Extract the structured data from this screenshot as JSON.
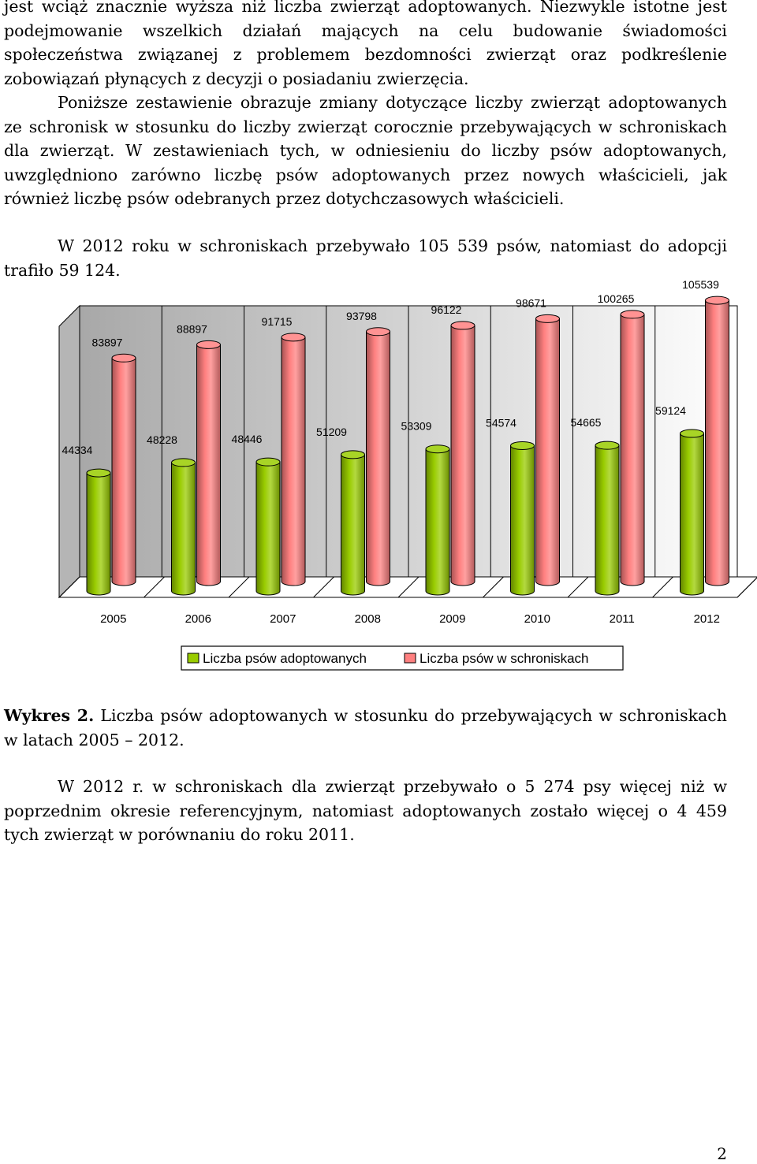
{
  "paragraphs": {
    "p1": "jest wciąż znacznie wyższa niż liczba zwierząt adoptowanych. Niezwykle istotne jest podejmowanie wszelkich działań mających na celu budowanie świadomości społeczeństwa związanej z problemem bezdomności zwierząt oraz podkreślenie zobowiązań płynących z decyzji o posiadaniu zwierzęcia.",
    "p2": "Poniższe zestawienie obrazuje zmiany dotyczące liczby zwierząt adoptowanych ze schronisk w stosunku do liczby zwierząt corocznie przebywających w schroniskach dla zwierząt. W zestawieniach tych, w odniesieniu do liczby psów adoptowanych, uwzględniono zarówno liczbę psów adoptowanych przez nowych właścicieli, jak również liczbę psów odebranych przez dotychczasowych właścicieli.",
    "p3": "W 2012 roku w schroniskach przebywało 105 539 psów, natomiast do adopcji trafiło 59 124.",
    "p4": "W 2012 r. w schroniskach dla zwierząt przebywało o 5 274 psy więcej niż w poprzednim okresie referencyjnym, natomiast adoptowanych zostało więcej o 4 459 tych zwierząt w porównaniu do roku 2011."
  },
  "caption": {
    "label": "Wykres 2.",
    "text": " Liczba psów adoptowanych w stosunku do przebywających w schroniskach w latach 2005 – 2012."
  },
  "page_number": "2",
  "chart_data": {
    "type": "bar",
    "categories": [
      "2005",
      "2006",
      "2007",
      "2008",
      "2009",
      "2010",
      "2011",
      "2012"
    ],
    "series": [
      {
        "name": "Liczba psów adoptowanych",
        "values": [
          44334,
          48228,
          48446,
          51209,
          53309,
          54574,
          54665,
          59124
        ],
        "color": "#99cc00"
      },
      {
        "name": "Liczba psów w schroniskach",
        "values": [
          83897,
          88897,
          91715,
          93798,
          96122,
          98671,
          100265,
          105539
        ],
        "color": "#ff8080"
      }
    ],
    "legend_position": "bottom",
    "style": "3d-cylinder",
    "grid": false
  }
}
